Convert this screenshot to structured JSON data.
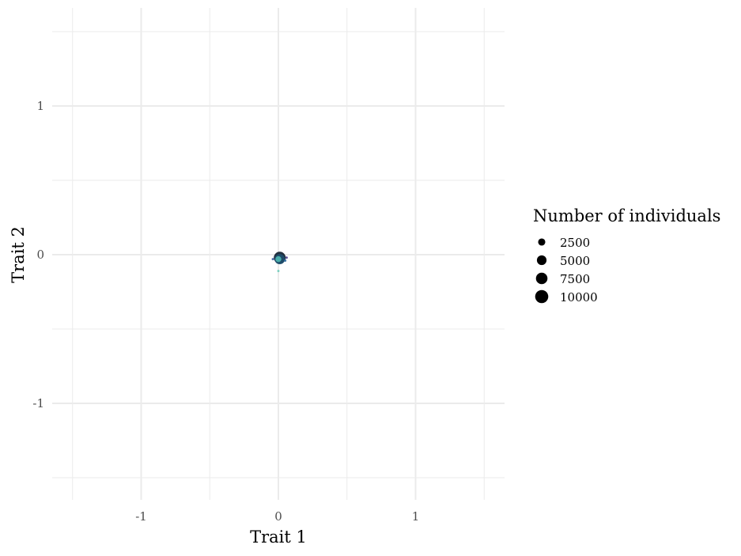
{
  "chart_data": {
    "type": "scatter",
    "title": "",
    "xlabel": "Trait 1",
    "ylabel": "Trait 2",
    "xlim": [
      -1.65,
      1.65
    ],
    "ylim": [
      -1.65,
      1.65
    ],
    "x_ticks": [
      "-1",
      "0",
      "1"
    ],
    "y_ticks": [
      "1",
      "0",
      "-1"
    ],
    "x_tick_values": [
      -1,
      0,
      1
    ],
    "y_tick_values": [
      1,
      0,
      -1
    ],
    "grid": true,
    "legend": {
      "title": "Number of individuals",
      "position": "right",
      "entries": [
        {
          "label": "2500",
          "value": 2500
        },
        {
          "label": "5000",
          "value": 5000
        },
        {
          "label": "7500",
          "value": 7500
        },
        {
          "label": "10000",
          "value": 10000
        }
      ]
    },
    "points": [
      {
        "x": 0.01,
        "y": -0.02,
        "size": 10000,
        "color": "#0b1a2a"
      },
      {
        "x": 0.01,
        "y": -0.03,
        "size": 7500,
        "color": "#1f4f6e"
      },
      {
        "x": 0.0,
        "y": -0.03,
        "size": 2500,
        "color": "#4fb9b2"
      },
      {
        "x": -0.04,
        "y": -0.03,
        "size": 300,
        "color": "#3d5f9e"
      },
      {
        "x": 0.06,
        "y": -0.02,
        "size": 300,
        "color": "#4a3f8a"
      },
      {
        "x": 0.05,
        "y": -0.04,
        "size": 200,
        "color": "#2b6aa0"
      },
      {
        "x": 0.0,
        "y": -0.11,
        "size": 150,
        "color": "#72cdbd"
      }
    ],
    "colors": {
      "grid": "#ebebeb",
      "legend_key": "#000000"
    }
  }
}
